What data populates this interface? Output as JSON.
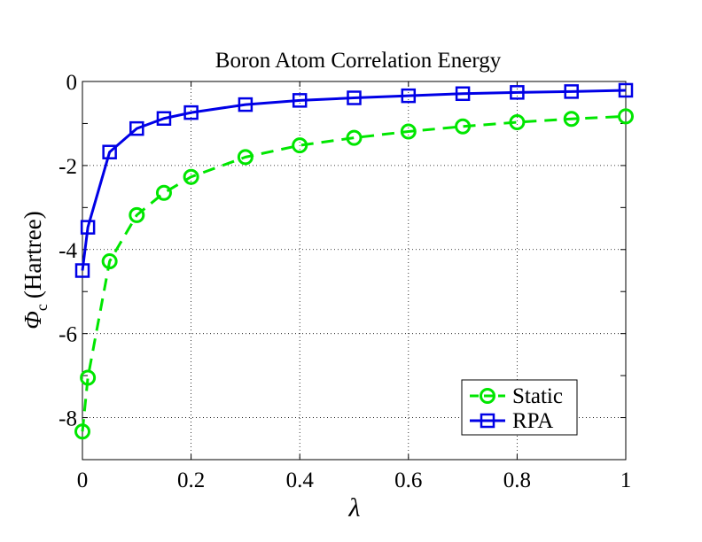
{
  "chart_data": {
    "type": "line",
    "title": "Boron Atom Correlation Energy",
    "xlabel": "λ",
    "ylabel_symbol": "Φ",
    "ylabel_subscript": "c",
    "ylabel_unit": "(Hartree)",
    "xlim": [
      0,
      1
    ],
    "ylim": [
      -9,
      0
    ],
    "xticks": [
      0,
      0.2,
      0.4,
      0.6,
      0.8,
      1
    ],
    "xtick_labels": [
      "0",
      "0.2",
      "0.4",
      "0.6",
      "0.8",
      "1"
    ],
    "yticks": [
      0,
      -2,
      -4,
      -6,
      -8
    ],
    "ytick_labels": [
      "0",
      "-2",
      "-4",
      "-6",
      "-8"
    ],
    "grid": true,
    "legend_position": "bottom-right",
    "series": [
      {
        "name": "Static",
        "color": "#00e600",
        "line_style": "dashed",
        "marker": "circle",
        "x": [
          0,
          0.01,
          0.05,
          0.1,
          0.15,
          0.2,
          0.3,
          0.4,
          0.5,
          0.6,
          0.7,
          0.8,
          0.9,
          1.0
        ],
        "y": [
          -8.33,
          -7.05,
          -4.28,
          -3.18,
          -2.65,
          -2.27,
          -1.8,
          -1.52,
          -1.34,
          -1.19,
          -1.07,
          -0.97,
          -0.89,
          -0.83
        ]
      },
      {
        "name": "RPA",
        "color": "#0000e6",
        "line_style": "solid",
        "marker": "square",
        "x": [
          0,
          0.01,
          0.05,
          0.1,
          0.15,
          0.2,
          0.3,
          0.4,
          0.5,
          0.6,
          0.7,
          0.8,
          0.9,
          1.0
        ],
        "y": [
          -4.5,
          -3.47,
          -1.68,
          -1.12,
          -0.88,
          -0.74,
          -0.55,
          -0.45,
          -0.39,
          -0.34,
          -0.29,
          -0.26,
          -0.24,
          -0.21
        ]
      }
    ]
  }
}
